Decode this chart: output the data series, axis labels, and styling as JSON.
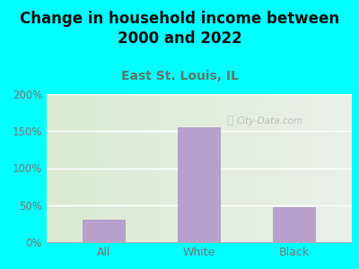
{
  "title": "Change in household income between\n2000 and 2022",
  "subtitle": "East St. Louis, IL",
  "categories": [
    "All",
    "White",
    "Black"
  ],
  "values": [
    30,
    155,
    47
  ],
  "bar_color": "#b8a0cc",
  "background_color": "#00ffff",
  "title_color": "#111111",
  "subtitle_color": "#5a7a6a",
  "tick_label_color": "#777777",
  "ylim": [
    0,
    200
  ],
  "yticks": [
    0,
    50,
    100,
    150,
    200
  ],
  "ytick_labels": [
    "0%",
    "50%",
    "100%",
    "150%",
    "200%"
  ],
  "watermark": "City-Data.com",
  "title_fontsize": 12,
  "subtitle_fontsize": 10
}
